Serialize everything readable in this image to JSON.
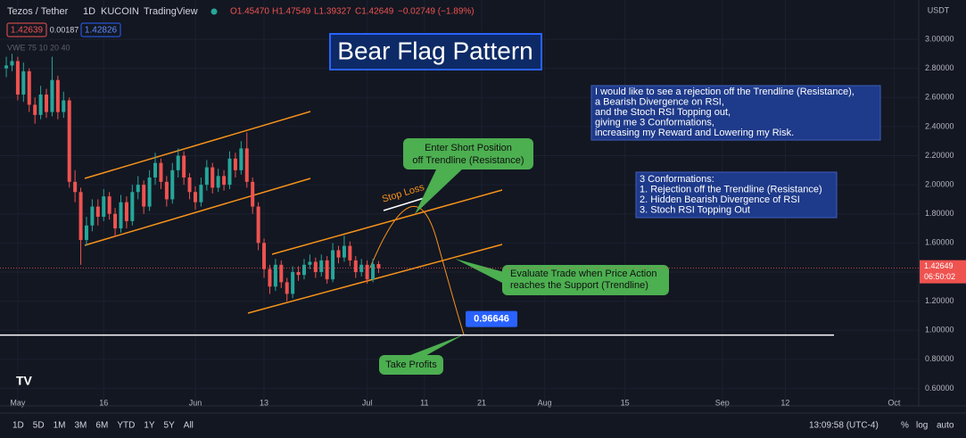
{
  "header": {
    "symbol": "Tezos / Tether",
    "interval": "1D",
    "exchange": "KUCOIN",
    "platform": "TradingView",
    "ohlc": [
      "O1.45470",
      "H1.47549",
      "L1.39327",
      "C1.42649",
      "−0.02749 (−1.89%)"
    ],
    "bid": "1.42639",
    "spread": "0.00187",
    "ask": "1.42826",
    "indicator": "VWE 75 10 20 40"
  },
  "currency": "USDT",
  "chart_data": {
    "type": "candlestick",
    "title": "Bear Flag Pattern",
    "x": [
      -2,
      -1,
      0,
      1,
      2,
      3,
      4,
      5,
      6,
      7,
      8,
      9,
      10,
      11,
      12,
      13,
      14,
      15,
      16,
      17,
      18,
      19,
      20,
      21,
      22,
      23,
      24,
      25,
      26,
      27,
      28,
      29,
      30,
      31,
      32,
      33,
      34,
      35,
      36,
      37,
      38,
      39,
      40,
      41,
      42,
      43,
      44,
      45,
      46,
      47,
      48,
      49,
      50,
      51,
      52,
      53,
      54,
      55,
      56,
      57,
      58,
      59,
      60,
      61,
      62,
      63
    ],
    "open": [
      2.8,
      2.82,
      2.85,
      2.62,
      2.78,
      2.55,
      2.48,
      2.62,
      2.5,
      2.72,
      2.5,
      2.58,
      2.02,
      1.95,
      1.62,
      1.72,
      1.85,
      1.78,
      1.92,
      1.8,
      1.7,
      1.88,
      1.75,
      1.95,
      2.0,
      1.85,
      2.05,
      2.15,
      2.02,
      1.9,
      2.1,
      2.2,
      2.05,
      1.95,
      1.88,
      2.0,
      2.12,
      1.98,
      2.06,
      2.0,
      2.18,
      2.1,
      2.25,
      2.02,
      1.85,
      1.6,
      1.42,
      1.3,
      1.45,
      1.33,
      1.25,
      1.4,
      1.38,
      1.45,
      1.47,
      1.4,
      1.48,
      1.35,
      1.55,
      1.5,
      1.58,
      1.48,
      1.4,
      1.45,
      1.35,
      1.4547
    ],
    "high": [
      2.88,
      2.9,
      2.88,
      2.84,
      2.8,
      2.6,
      2.68,
      2.66,
      2.88,
      2.75,
      2.64,
      2.6,
      2.1,
      1.98,
      1.78,
      1.9,
      1.9,
      1.97,
      1.95,
      1.84,
      1.93,
      1.92,
      2.0,
      2.06,
      2.03,
      2.1,
      2.22,
      2.18,
      2.06,
      2.15,
      2.25,
      2.23,
      2.08,
      1.99,
      2.05,
      2.17,
      2.15,
      2.11,
      2.1,
      2.23,
      2.22,
      2.3,
      2.36,
      2.05,
      1.88,
      1.63,
      1.45,
      1.49,
      1.48,
      1.36,
      1.44,
      1.44,
      1.49,
      1.52,
      1.5,
      1.52,
      1.51,
      1.6,
      1.58,
      1.65,
      1.61,
      1.51,
      1.49,
      1.48,
      1.49,
      1.47549
    ],
    "low": [
      2.74,
      2.78,
      2.58,
      2.57,
      2.5,
      2.42,
      2.45,
      2.46,
      2.47,
      2.45,
      2.46,
      1.98,
      1.88,
      1.45,
      1.58,
      1.68,
      1.72,
      1.75,
      1.76,
      1.64,
      1.67,
      1.7,
      1.72,
      1.9,
      1.8,
      1.82,
      2.0,
      1.97,
      1.85,
      1.87,
      2.05,
      2.0,
      1.9,
      1.83,
      1.85,
      1.96,
      1.94,
      1.95,
      1.96,
      1.97,
      2.05,
      2.07,
      1.98,
      1.8,
      1.55,
      1.36,
      1.25,
      1.27,
      1.29,
      1.2,
      1.22,
      1.34,
      1.35,
      1.42,
      1.36,
      1.37,
      1.32,
      1.33,
      1.46,
      1.47,
      1.44,
      1.36,
      1.37,
      1.32,
      1.33,
      1.39327
    ],
    "close": [
      2.82,
      2.85,
      2.62,
      2.78,
      2.55,
      2.48,
      2.62,
      2.5,
      2.72,
      2.5,
      2.58,
      2.02,
      1.95,
      1.62,
      1.72,
      1.85,
      1.78,
      1.92,
      1.8,
      1.7,
      1.88,
      1.75,
      1.95,
      2.0,
      1.85,
      2.05,
      2.15,
      2.02,
      1.9,
      2.1,
      2.2,
      2.05,
      1.95,
      1.88,
      2.0,
      2.12,
      1.98,
      2.06,
      2.0,
      2.18,
      2.1,
      2.25,
      2.02,
      1.85,
      1.6,
      1.42,
      1.3,
      1.45,
      1.33,
      1.25,
      1.4,
      1.38,
      1.45,
      1.47,
      1.4,
      1.48,
      1.35,
      1.55,
      1.5,
      1.58,
      1.48,
      1.4,
      1.45,
      1.35,
      1.4547,
      1.42649
    ],
    "up_color": "#26a69a",
    "down_color": "#ef5350",
    "grid": true,
    "xlim": [
      -3.1,
      157.3
    ],
    "xticks": [
      {
        "value": 0,
        "label": "May"
      },
      {
        "value": 15,
        "label": "16"
      },
      {
        "value": 31,
        "label": "Jun"
      },
      {
        "value": 43,
        "label": "13"
      },
      {
        "value": 61,
        "label": "Jul"
      },
      {
        "value": 71,
        "label": "11"
      },
      {
        "value": 81,
        "label": "21"
      },
      {
        "value": 92,
        "label": "Aug"
      },
      {
        "value": 106,
        "label": "15"
      },
      {
        "value": 123,
        "label": "Sep"
      },
      {
        "value": 134,
        "label": "12"
      },
      {
        "value": 153,
        "label": "Oct"
      }
    ],
    "ylim": [
      0.48,
      3.27
    ],
    "yticks": [
      {
        "value": 3.0,
        "label": "3.00000"
      },
      {
        "value": 2.8,
        "label": "2.80000"
      },
      {
        "value": 2.6,
        "label": "2.60000"
      },
      {
        "value": 2.4,
        "label": "2.40000"
      },
      {
        "value": 2.2,
        "label": "2.20000"
      },
      {
        "value": 2.0,
        "label": "2.00000"
      },
      {
        "value": 1.8,
        "label": "1.80000"
      },
      {
        "value": 1.6,
        "label": "1.60000"
      },
      {
        "value": 1.4,
        "label": "1.40000"
      },
      {
        "value": 1.2,
        "label": "1.20000"
      },
      {
        "value": 1.0,
        "label": "1.00000"
      },
      {
        "value": 0.8,
        "label": "0.80000"
      },
      {
        "value": 0.6,
        "label": "0.60000"
      }
    ],
    "last_price": {
      "value": 1.42649,
      "label": "1.42649"
    },
    "countdown": "06:50:02",
    "target": {
      "value": 0.96646,
      "label": "0.96646"
    },
    "annotations": {
      "enter": [
        "Enter Short Position",
        "off Trendline (Resistance)"
      ],
      "stop": "Stop Loss",
      "evaluate": [
        "Evaluate Trade when Price Action",
        "reaches the Support (Trendline)"
      ],
      "take": "Take Profits",
      "note": [
        "I would like to see a rejection off the Trendline (Resistance),",
        "a Bearish Divergence on RSI,",
        "and the Stoch RSI Topping out,",
        "giving me 3 Conformations,",
        "increasing my Reward and Lowering my Risk."
      ],
      "conf": [
        "3 Conformations:",
        "1. Rejection off the Trendline (Resistance)",
        "2. Hidden Bearish Divergence of RSI",
        "3. Stoch RSI Topping Out"
      ]
    }
  },
  "toolbar": {
    "ranges": [
      "1D",
      "5D",
      "1M",
      "3M",
      "6M",
      "YTD",
      "1Y",
      "5Y",
      "All"
    ],
    "clock": "13:09:58 (UTC-4)",
    "options": [
      "%",
      "log",
      "auto"
    ]
  }
}
